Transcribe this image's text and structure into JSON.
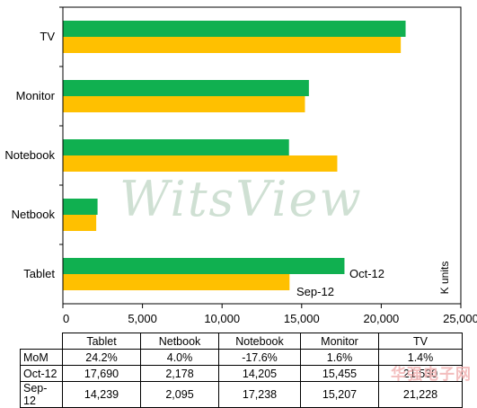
{
  "chart_data": {
    "type": "bar",
    "orientation": "horizontal",
    "categories": [
      "TV",
      "Monitor",
      "Notebook",
      "Netbook",
      "Tablet"
    ],
    "series": [
      {
        "name": "Oct-12",
        "color": "#10b050",
        "values": [
          21530,
          15455,
          14205,
          2178,
          17690
        ]
      },
      {
        "name": "Sep-12",
        "color": "#ffc000",
        "values": [
          21228,
          15207,
          17238,
          2095,
          14239
        ]
      }
    ],
    "xlim": [
      0,
      25000
    ],
    "xticks": [
      "0",
      "5,000",
      "10,000",
      "15,000",
      "20,000",
      "25,000"
    ],
    "ylabel": "K units",
    "grid": false,
    "legend": "inline labels beside Tablet bars"
  },
  "watermark": "WitsView",
  "table": {
    "headers": [
      "Tablet",
      "Netbook",
      "Notebook",
      "Monitor",
      "TV"
    ],
    "rows": [
      {
        "label": "MoM",
        "cells": [
          "24.2%",
          "4.0%",
          "-17.6%",
          "1.6%",
          "1.4%"
        ]
      },
      {
        "label": "Oct-12",
        "cells": [
          "17,690",
          "2,178",
          "14,205",
          "15,455",
          "21,530"
        ]
      },
      {
        "label": "Sep-12",
        "cells": [
          "14,239",
          "2,095",
          "17,238",
          "15,207",
          "21,228"
        ]
      }
    ]
  },
  "stamp": "华强电子网"
}
